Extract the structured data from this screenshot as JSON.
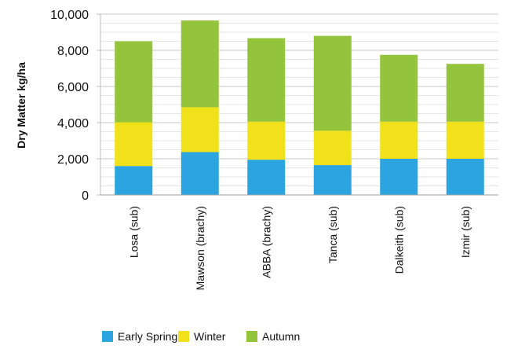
{
  "chart_data": {
    "type": "bar",
    "stacked": true,
    "categories": [
      "Losa (sub)",
      "Mawson (brachy)",
      "ABBA (brachy)",
      "Tanca (sub)",
      "Dalkeith (sub)",
      "Izmir (sub)"
    ],
    "series": [
      {
        "name": "Early Spring",
        "color": "#2ba4e0",
        "values": [
          1600,
          2370,
          1950,
          1650,
          2000,
          2000
        ]
      },
      {
        "name": "Winter",
        "color": "#f0e11a",
        "values": [
          2420,
          2480,
          2100,
          1900,
          2050,
          2050
        ]
      },
      {
        "name": "Autumn",
        "color": "#94c43b",
        "values": [
          4480,
          4800,
          4620,
          5250,
          3700,
          3200
        ]
      }
    ],
    "title": "",
    "xlabel": "",
    "ylabel": "Dry Matter kg/ha",
    "ylim": [
      0,
      10000
    ],
    "yticks": [
      0,
      2000,
      4000,
      6000,
      8000,
      10000
    ],
    "ytick_labels": [
      "0",
      "2,000",
      "4,000",
      "6,000",
      "8,000",
      "10,000"
    ],
    "grid": true,
    "minor_grid": true,
    "legend_position": "bottom"
  }
}
